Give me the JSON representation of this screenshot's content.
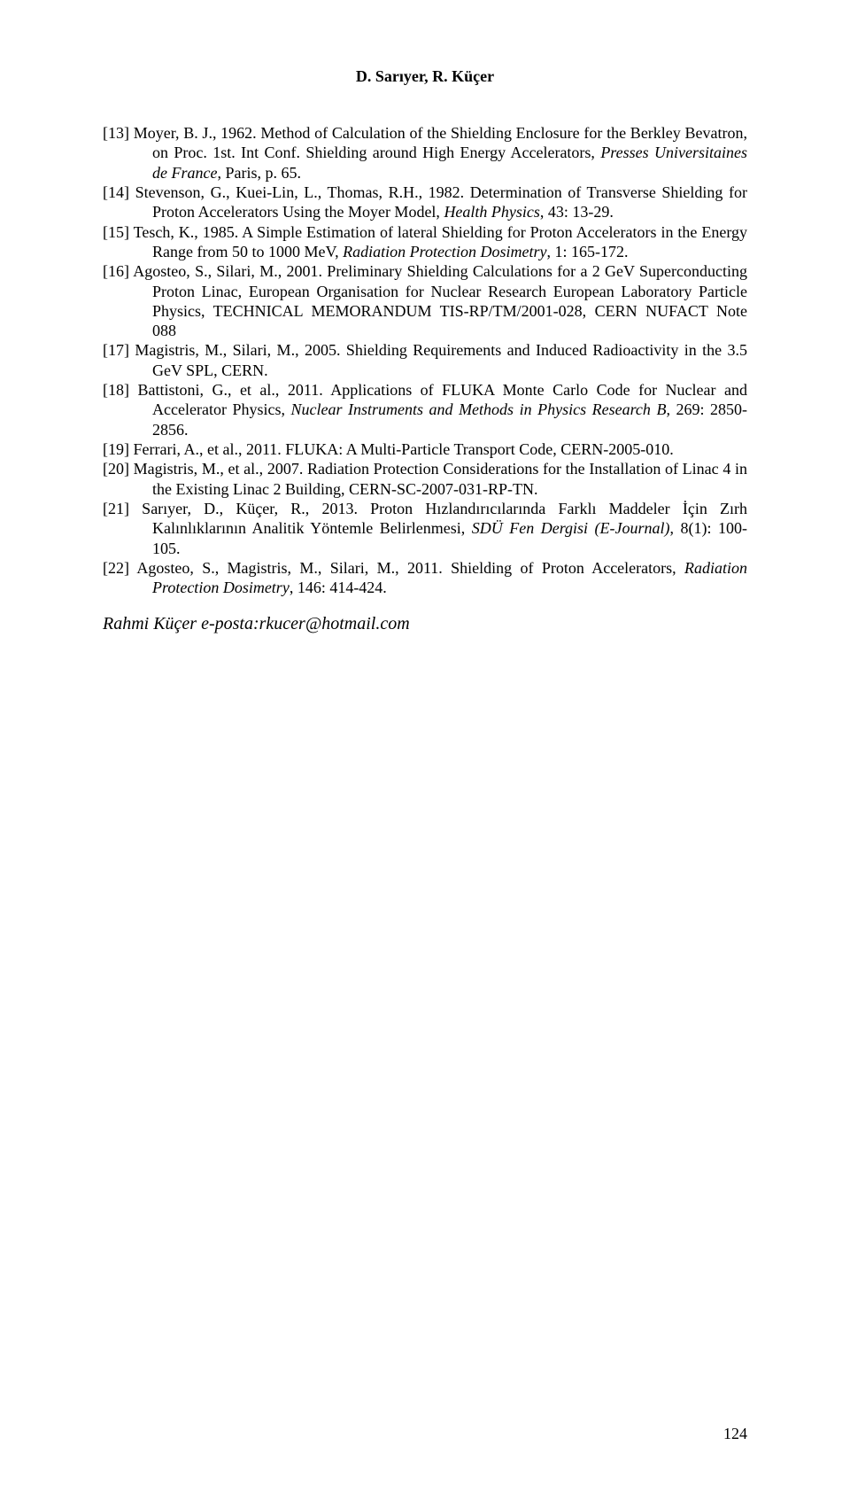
{
  "header": {
    "authors": "D. Sarıyer, R. Küçer"
  },
  "references": {
    "r13a": "[13] Moyer, B. J., 1962. Method of Calculation of the Shielding Enclosure for the Berkley Bevatron, on Proc. 1st. Int Conf. Shielding around High Energy Accelerators, ",
    "r13i": "Presses Universitaines de France",
    "r13b": ", Paris, p. 65.",
    "r14a": "[14] Stevenson, G., Kuei-Lin, L., Thomas, R.H., 1982. Determination of Transverse Shielding for Proton Accelerators Using the Moyer Model, ",
    "r14i": "Health Physics",
    "r14b": ", 43: 13-29.",
    "r15a": "[15] Tesch, K., 1985. A Simple Estimation of lateral Shielding for Proton Accelerators in the Energy Range from 50 to 1000 MeV, ",
    "r15i": "Radiation Protection Dosimetry",
    "r15b": ", 1: 165-172.",
    "r16": "[16] Agosteo, S., Silari, M., 2001. Preliminary Shielding Calculations for a 2 GeV Superconducting Proton Linac, European Organisation for Nuclear Research European Laboratory Particle Physics, TECHNICAL MEMORANDUM TIS-RP/TM/2001-028, CERN NUFACT Note 088",
    "r17": "[17] Magistris, M., Silari, M., 2005. Shielding Requirements and Induced Radioactivity in the 3.5 GeV SPL, CERN.",
    "r18a": "[18] Battistoni, G., et al., 2011. Applications of FLUKA Monte Carlo Code for Nuclear and Accelerator Physics, ",
    "r18i": "Nuclear Instruments and Methods in Physics Research B,",
    "r18b": " 269: 2850-2856.",
    "r19": "[19] Ferrari, A., et al., 2011. FLUKA: A Multi-Particle Transport Code, CERN-2005-010.",
    "r20": "[20] Magistris, M., et al., 2007. Radiation Protection Considerations for the Installation of Linac 4 in the Existing Linac 2 Building, CERN-SC-2007-031-RP-TN.",
    "r21a": "[21] Sarıyer, D., Küçer, R., 2013. Proton Hızlandırıcılarında Farklı Maddeler İçin Zırh Kalınlıklarının Analitik Yöntemle Belirlenmesi, ",
    "r21i": "SDÜ Fen Dergisi (E-Journal)",
    "r21b": ", 8(1): 100-105.",
    "r22a": "[22] Agosteo, S., Magistris, M., Silari, M., 2011. Shielding of Proton Accelerators, ",
    "r22i": "Radiation Protection Dosimetry",
    "r22b": ", 146: 414-424."
  },
  "corresponding": "Rahmi Küçer e-posta:rkucer@hotmail.com",
  "pageNumber": "124"
}
